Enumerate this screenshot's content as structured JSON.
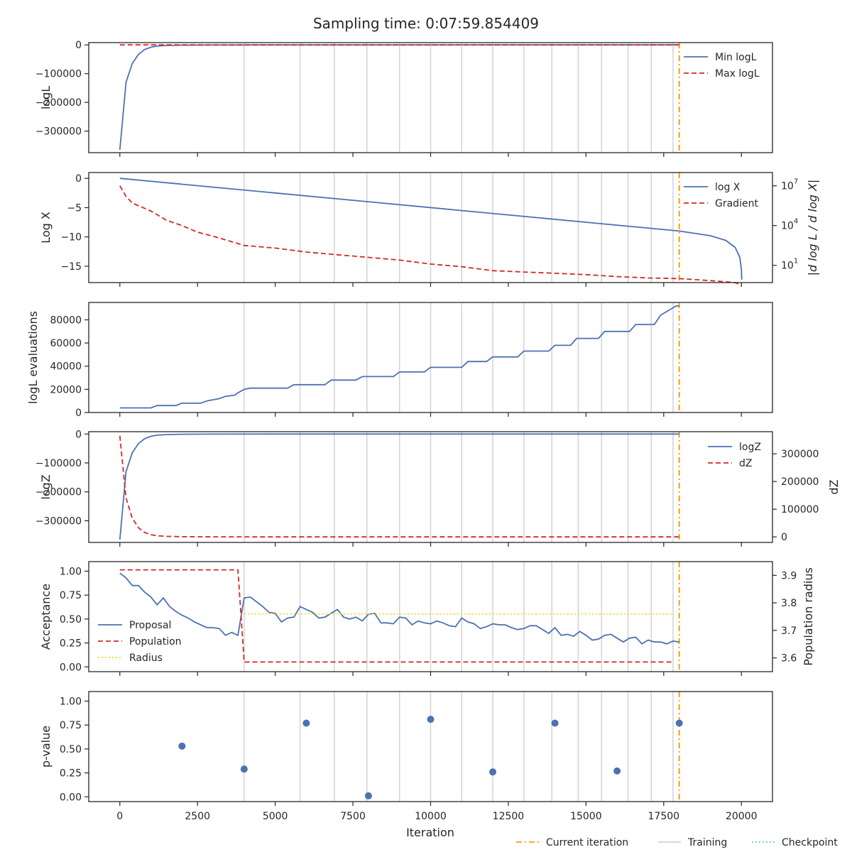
{
  "figure": {
    "title": "Sampling time: 0:07:59.854409",
    "xlabel": "Iteration",
    "x_ticks": [
      0,
      2500,
      5000,
      7500,
      10000,
      12500,
      15000,
      17500,
      20000
    ],
    "xlim": [
      -1000,
      21000
    ],
    "current_iteration": 18000,
    "training_iterations": [
      4000,
      5800,
      6900,
      7950,
      9000,
      10000,
      11000,
      12000,
      13000,
      13900,
      14750,
      15500,
      16350,
      17100,
      17800
    ],
    "legend": [
      "Current iteration",
      "Training",
      "Checkpoint"
    ],
    "colors": {
      "blue": "#4c72b0",
      "red": "#d62728",
      "orange": "#ff9e00",
      "yellow": "#ffd21f",
      "gray": "#d3d3d3",
      "cyan": "#5fc9e0"
    }
  },
  "chart_data": [
    {
      "type": "line",
      "ylabel": "logL",
      "ylim": [
        -375000,
        8000
      ],
      "yticks": [
        0,
        -100000,
        -200000,
        -300000
      ],
      "yticklabels": [
        "0",
        "−100000",
        "−200000",
        "−300000"
      ],
      "legend_position": "top-right",
      "series": [
        {
          "name": "Min logL",
          "color": "#4c72b0",
          "style": "solid",
          "x": [
            0,
            200,
            400,
            600,
            800,
            1000,
            1200,
            1500,
            2000,
            3000,
            5000,
            8000,
            12000,
            16000,
            18000
          ],
          "y": [
            -365000,
            -130000,
            -65000,
            -33000,
            -16000,
            -8000,
            -4000,
            -2000,
            -800,
            -300,
            -100,
            -50,
            -20,
            -10,
            -5
          ]
        },
        {
          "name": "Max logL",
          "color": "#d62728",
          "style": "dashed",
          "x": [
            0,
            18000
          ],
          "y": [
            0,
            0
          ]
        }
      ]
    },
    {
      "type": "line",
      "ylabel": "Log X",
      "ylim": [
        -17.8,
        1.0
      ],
      "yticks": [
        0,
        -5,
        -10,
        -15
      ],
      "yticklabels": [
        "0",
        "−5",
        "−10",
        "−15"
      ],
      "y2label": "|d log L / d log X|",
      "y2_log_range": [
        -0.3,
        8
      ],
      "y2ticks": [
        1,
        4,
        7
      ],
      "y2ticklabels": [
        "10",
        "10",
        "10"
      ],
      "y2tickexponents": [
        "1",
        "4",
        "7"
      ],
      "legend_position": "top-right",
      "series": [
        {
          "name": "log X",
          "color": "#4c72b0",
          "style": "solid",
          "x": [
            0,
            18000,
            19000,
            19500,
            19800,
            19950,
            20000,
            20010
          ],
          "y": [
            0,
            -9.0,
            -9.8,
            -10.6,
            -11.8,
            -13.5,
            -15.5,
            -17.3
          ]
        },
        {
          "name": "Gradient",
          "color": "#d62728",
          "style": "dashed",
          "log": true,
          "x": [
            0,
            100,
            200,
            400,
            700,
            1000,
            1500,
            2000,
            2500,
            3000,
            4000,
            5000,
            6000,
            7000,
            8000,
            9000,
            10000,
            11000,
            12000,
            13000,
            14000,
            15000,
            16000,
            17000,
            18000,
            19000,
            19800,
            20000
          ],
          "y": [
            7.0,
            6.6,
            6.2,
            5.7,
            5.4,
            5.1,
            4.4,
            4.0,
            3.5,
            3.2,
            2.5,
            2.3,
            2.0,
            1.8,
            1.6,
            1.4,
            1.1,
            0.9,
            0.6,
            0.5,
            0.4,
            0.3,
            0.15,
            0.05,
            0.0,
            -0.15,
            -0.3,
            -0.5
          ]
        }
      ]
    },
    {
      "type": "line",
      "ylabel": "logL evaluations",
      "ylim": [
        0,
        95000
      ],
      "yticks": [
        0,
        20000,
        40000,
        60000,
        80000
      ],
      "yticklabels": [
        "0",
        "20000",
        "40000",
        "60000",
        "80000"
      ],
      "series": [
        {
          "name": "",
          "color": "#4c72b0",
          "style": "solid",
          "x": [
            0,
            1000,
            1200,
            1800,
            2000,
            2600,
            2800,
            3200,
            3400,
            3700,
            3800,
            4000,
            4200,
            5400,
            5600,
            6600,
            6800,
            7600,
            7800,
            8800,
            9000,
            9800,
            10000,
            11000,
            11200,
            11800,
            12000,
            12800,
            13000,
            13800,
            14000,
            14500,
            14700,
            15400,
            15600,
            16400,
            16600,
            17200,
            17400,
            17900,
            18000
          ],
          "y": [
            4000,
            4000,
            6000,
            6000,
            8000,
            8000,
            10000,
            12000,
            14000,
            15000,
            17000,
            20000,
            21000,
            21000,
            24000,
            24000,
            28000,
            28000,
            31000,
            31000,
            35000,
            35000,
            39000,
            39000,
            44000,
            44000,
            48000,
            48000,
            53000,
            53000,
            58000,
            58000,
            64000,
            64000,
            70000,
            70000,
            76000,
            76000,
            84000,
            92000,
            92000
          ]
        }
      ]
    },
    {
      "type": "line",
      "ylabel": "logZ",
      "ylim": [
        -375000,
        8000
      ],
      "yticks": [
        0,
        -100000,
        -200000,
        -300000
      ],
      "yticklabels": [
        "0",
        "−100000",
        "−200000",
        "−300000"
      ],
      "y2label": "dZ",
      "y2lim": [
        -20000,
        380000
      ],
      "y2ticks": [
        0,
        100000,
        200000,
        300000
      ],
      "y2ticklabels": [
        "0",
        "100000",
        "200000",
        "300000"
      ],
      "legend_position": "top-right",
      "series": [
        {
          "name": "logZ",
          "color": "#4c72b0",
          "style": "solid",
          "x": [
            0,
            200,
            400,
            600,
            800,
            1000,
            1200,
            1500,
            2000,
            3000,
            5000,
            8000,
            12000,
            16000,
            18000
          ],
          "y": [
            -365000,
            -130000,
            -65000,
            -33000,
            -16000,
            -8000,
            -4000,
            -2000,
            -800,
            -300,
            -100,
            -50,
            -20,
            -10,
            -5
          ]
        },
        {
          "name": "dZ",
          "color": "#d62728",
          "style": "dashed",
          "axis": "right",
          "x": [
            0,
            200,
            400,
            600,
            800,
            1000,
            1200,
            1500,
            2000,
            3000,
            5000,
            18000
          ],
          "y": [
            365000,
            140000,
            68000,
            33000,
            16000,
            8000,
            4000,
            2000,
            800,
            300,
            100,
            0
          ]
        }
      ]
    },
    {
      "type": "line",
      "ylabel": "Acceptance",
      "ylim": [
        -0.05,
        1.1
      ],
      "yticks": [
        0.0,
        0.25,
        0.5,
        0.75,
        1.0
      ],
      "yticklabels": [
        "0.00",
        "0.25",
        "0.50",
        "0.75",
        "1.00"
      ],
      "y2label": "Population radius",
      "y2lim": [
        3.55,
        3.95
      ],
      "y2ticks": [
        3.6,
        3.7,
        3.8,
        3.9
      ],
      "y2ticklabels": [
        "3.6",
        "3.7",
        "3.8",
        "3.9"
      ],
      "legend_position": "center-left",
      "series": [
        {
          "name": "Proposal",
          "color": "#4c72b0",
          "style": "solid",
          "x": [
            0,
            200,
            400,
            600,
            800,
            1000,
            1200,
            1400,
            1600,
            1800,
            2000,
            2200,
            2400,
            2600,
            2800,
            3000,
            3200,
            3400,
            3600,
            3800,
            4000,
            4200,
            4400,
            4600,
            4800,
            5000,
            5200,
            5400,
            5600,
            5800,
            6000,
            6200,
            6400,
            6600,
            6800,
            7000,
            7200,
            7400,
            7600,
            7800,
            8000,
            8200,
            8400,
            8600,
            8800,
            9000,
            9200,
            9400,
            9600,
            9800,
            10000,
            10200,
            10400,
            10600,
            10800,
            11000,
            11200,
            11400,
            11600,
            11800,
            12000,
            12200,
            12400,
            12600,
            12800,
            13000,
            13200,
            13400,
            13600,
            13800,
            14000,
            14200,
            14400,
            14600,
            14800,
            15000,
            15200,
            15400,
            15600,
            15800,
            16000,
            16200,
            16400,
            16600,
            16800,
            17000,
            17200,
            17400,
            17600,
            17800,
            18000
          ],
          "y": [
            0.98,
            0.93,
            0.85,
            0.85,
            0.78,
            0.73,
            0.65,
            0.72,
            0.63,
            0.58,
            0.54,
            0.51,
            0.47,
            0.44,
            0.41,
            0.41,
            0.4,
            0.33,
            0.36,
            0.33,
            0.72,
            0.73,
            0.68,
            0.63,
            0.57,
            0.56,
            0.47,
            0.51,
            0.52,
            0.63,
            0.6,
            0.57,
            0.51,
            0.52,
            0.56,
            0.6,
            0.52,
            0.5,
            0.52,
            0.48,
            0.55,
            0.56,
            0.46,
            0.46,
            0.45,
            0.52,
            0.51,
            0.44,
            0.48,
            0.46,
            0.45,
            0.48,
            0.46,
            0.43,
            0.42,
            0.51,
            0.47,
            0.45,
            0.4,
            0.42,
            0.45,
            0.44,
            0.44,
            0.41,
            0.39,
            0.4,
            0.43,
            0.43,
            0.39,
            0.35,
            0.41,
            0.33,
            0.34,
            0.32,
            0.37,
            0.33,
            0.28,
            0.29,
            0.33,
            0.34,
            0.3,
            0.26,
            0.3,
            0.31,
            0.24,
            0.28,
            0.26,
            0.26,
            0.24,
            0.27,
            0.26
          ]
        },
        {
          "name": "Population",
          "color": "#d62728",
          "style": "dashed",
          "axis": "right",
          "x": [
            0,
            3800,
            4000,
            17800
          ],
          "y": [
            3.92,
            3.92,
            3.585,
            3.585
          ]
        },
        {
          "name": "Radius",
          "color": "#ffd21f",
          "style": "dotted",
          "axis": "right",
          "x": [
            4000,
            17800
          ],
          "y": [
            3.76,
            3.76
          ]
        }
      ]
    },
    {
      "type": "scatter",
      "ylabel": "p-value",
      "ylim": [
        -0.05,
        1.1
      ],
      "yticks": [
        0.0,
        0.25,
        0.5,
        0.75,
        1.0
      ],
      "yticklabels": [
        "0.00",
        "0.25",
        "0.50",
        "0.75",
        "1.00"
      ],
      "series": [
        {
          "name": "",
          "color": "#4c72b0",
          "x": [
            2000,
            4000,
            6000,
            8000,
            10000,
            12000,
            14000,
            16000,
            18000
          ],
          "y": [
            0.53,
            0.29,
            0.77,
            0.01,
            0.81,
            0.26,
            0.77,
            0.27,
            0.77
          ]
        }
      ]
    }
  ]
}
